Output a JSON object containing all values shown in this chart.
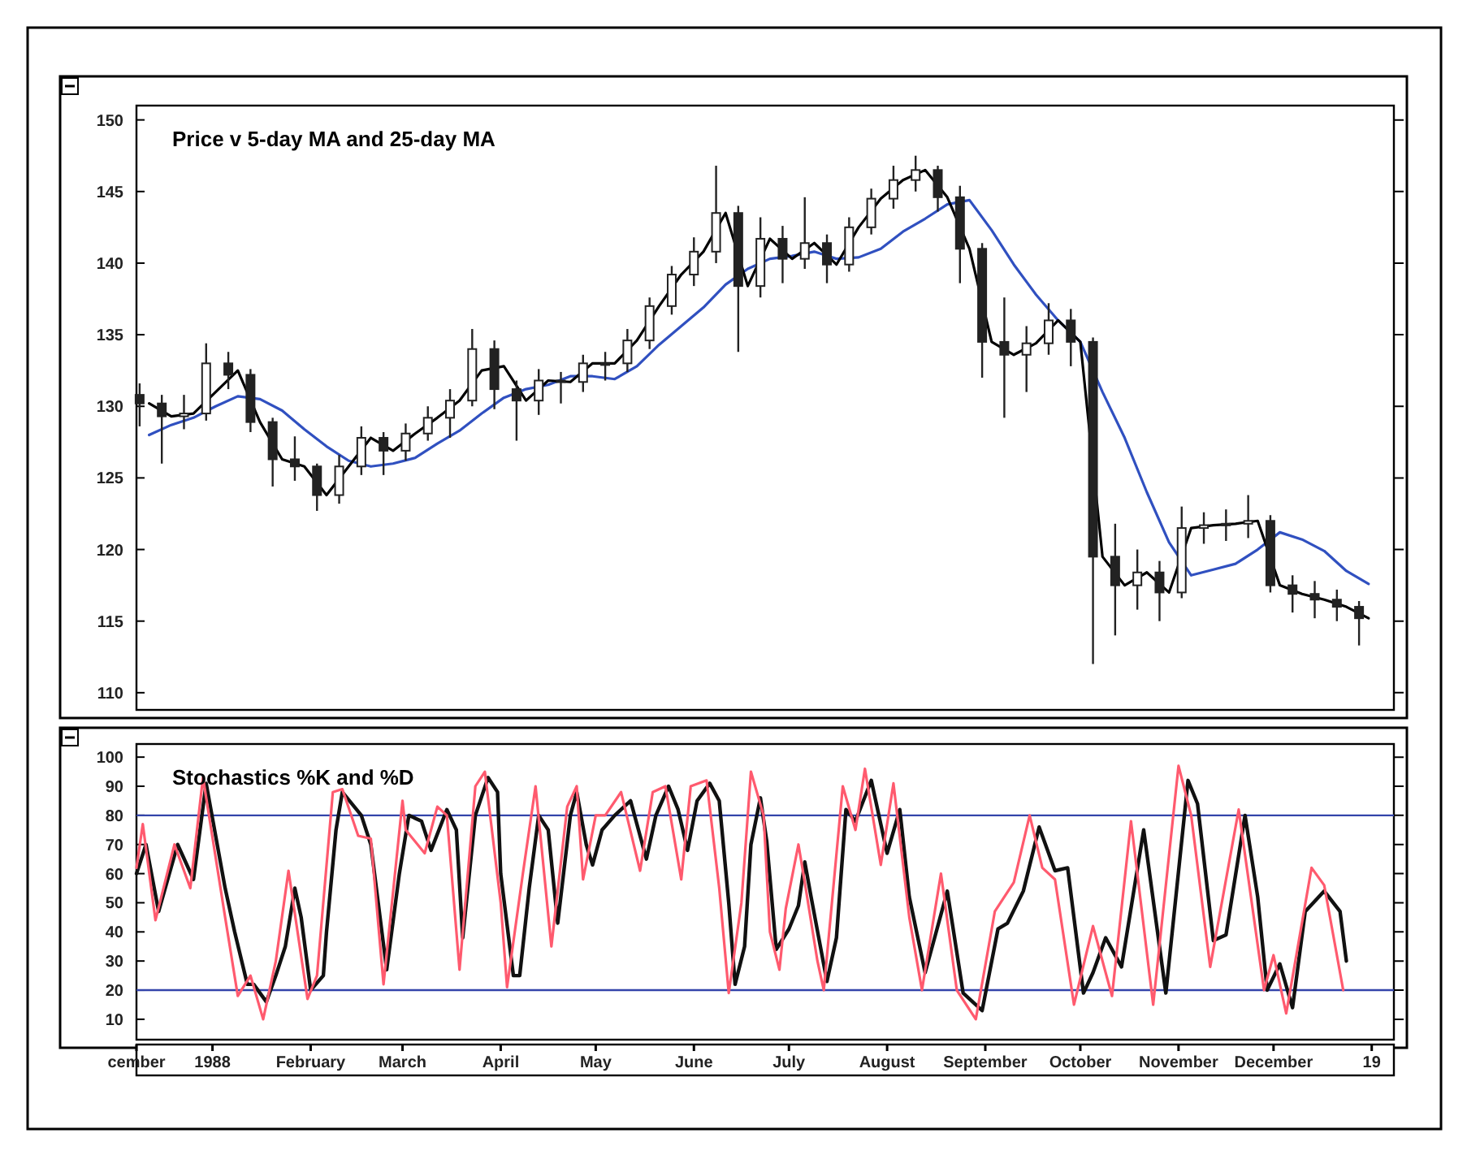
{
  "chart_data": [
    {
      "type": "candlestick",
      "title": "Price v 5-day MA and 25-day MA",
      "xlim": [
        "1987-12-08",
        "1989-01-08"
      ],
      "ylim": [
        108.8,
        151
      ],
      "yticks": [
        110,
        115,
        120,
        125,
        130,
        135,
        140,
        145,
        150
      ],
      "tick_labels": "y",
      "color": "#222222",
      "x": [
        "1987-12-09",
        "1987-12-16",
        "1987-12-23",
        "1987-12-30",
        "1988-01-06",
        "1988-01-13",
        "1988-01-20",
        "1988-01-27",
        "1988-02-03",
        "1988-02-10",
        "1988-02-17",
        "1988-02-24",
        "1988-03-02",
        "1988-03-09",
        "1988-03-16",
        "1988-03-23",
        "1988-03-30",
        "1988-04-06",
        "1988-04-13",
        "1988-04-20",
        "1988-04-27",
        "1988-05-04",
        "1988-05-11",
        "1988-05-18",
        "1988-05-25",
        "1988-06-01",
        "1988-06-08",
        "1988-06-15",
        "1988-06-22",
        "1988-06-29",
        "1988-07-06",
        "1988-07-13",
        "1988-07-20",
        "1988-07-27",
        "1988-08-03",
        "1988-08-10",
        "1988-08-17",
        "1988-08-24",
        "1988-08-31",
        "1988-09-07",
        "1988-09-14",
        "1988-09-21",
        "1988-09-28",
        "1988-10-05",
        "1988-10-12",
        "1988-10-19",
        "1988-10-26",
        "1988-11-02",
        "1988-11-09",
        "1988-11-16",
        "1988-11-23",
        "1988-11-30",
        "1988-12-07",
        "1988-12-14",
        "1988-12-21",
        "1988-12-28"
      ],
      "ohlc": [
        [
          130.8,
          131.6,
          128.6,
          130.2
        ],
        [
          130.2,
          130.8,
          126.0,
          129.3
        ],
        [
          129.3,
          130.8,
          128.4,
          129.5
        ],
        [
          129.5,
          134.4,
          129.0,
          133.0
        ],
        [
          133.0,
          133.8,
          131.2,
          132.2
        ],
        [
          132.2,
          132.6,
          128.2,
          128.9
        ],
        [
          128.9,
          129.2,
          124.4,
          126.3
        ],
        [
          126.3,
          127.9,
          124.8,
          125.8
        ],
        [
          125.8,
          126.0,
          122.7,
          123.8
        ],
        [
          123.8,
          126.6,
          123.2,
          125.8
        ],
        [
          125.8,
          128.6,
          125.2,
          127.8
        ],
        [
          127.8,
          128.2,
          125.2,
          126.9
        ],
        [
          126.9,
          128.8,
          126.2,
          128.1
        ],
        [
          128.1,
          130.0,
          127.6,
          129.2
        ],
        [
          129.2,
          131.2,
          127.8,
          130.4
        ],
        [
          130.4,
          135.4,
          130.0,
          134.0
        ],
        [
          134.0,
          134.6,
          129.8,
          131.2
        ],
        [
          131.2,
          131.8,
          127.6,
          130.4
        ],
        [
          130.4,
          132.6,
          129.4,
          131.8
        ],
        [
          131.8,
          132.4,
          130.2,
          131.7
        ],
        [
          131.7,
          133.6,
          131.0,
          133.0
        ],
        [
          133.0,
          133.8,
          131.8,
          133.0
        ],
        [
          133.0,
          135.4,
          132.4,
          134.6
        ],
        [
          134.6,
          137.6,
          134.0,
          137.0
        ],
        [
          137.0,
          139.8,
          136.4,
          139.2
        ],
        [
          139.2,
          141.8,
          138.4,
          140.8
        ],
        [
          140.8,
          146.8,
          140.0,
          143.5
        ],
        [
          143.5,
          144.0,
          133.8,
          138.4
        ],
        [
          138.4,
          143.2,
          137.6,
          141.7
        ],
        [
          141.7,
          142.6,
          138.6,
          140.3
        ],
        [
          140.3,
          144.6,
          139.6,
          141.4
        ],
        [
          141.4,
          142.0,
          138.6,
          139.9
        ],
        [
          139.9,
          143.2,
          139.4,
          142.5
        ],
        [
          142.5,
          145.2,
          142.0,
          144.5
        ],
        [
          144.5,
          146.8,
          143.8,
          145.8
        ],
        [
          145.8,
          147.5,
          145.0,
          146.5
        ],
        [
          146.5,
          146.8,
          143.6,
          144.6
        ],
        [
          144.6,
          145.4,
          138.6,
          141.0
        ],
        [
          141.0,
          141.4,
          132.0,
          134.5
        ],
        [
          134.5,
          137.6,
          129.2,
          133.6
        ],
        [
          133.6,
          135.6,
          131.0,
          134.4
        ],
        [
          134.4,
          137.2,
          133.6,
          136.0
        ],
        [
          136.0,
          136.8,
          132.8,
          134.5
        ],
        [
          134.5,
          134.8,
          112.0,
          119.5
        ],
        [
          119.5,
          121.8,
          114.0,
          117.5
        ],
        [
          117.5,
          120.0,
          115.8,
          118.4
        ],
        [
          118.4,
          119.2,
          115.0,
          117.0
        ],
        [
          117.0,
          123.0,
          116.6,
          121.5
        ],
        [
          121.5,
          122.6,
          120.4,
          121.7
        ],
        [
          121.7,
          122.8,
          120.6,
          121.8
        ],
        [
          121.8,
          123.8,
          120.8,
          122.0
        ],
        [
          122.0,
          122.4,
          117.0,
          117.5
        ],
        [
          117.5,
          118.2,
          115.6,
          116.9
        ],
        [
          116.9,
          117.8,
          115.2,
          116.5
        ],
        [
          116.5,
          117.2,
          115.0,
          116.0
        ],
        [
          116.0,
          116.4,
          113.3,
          115.2
        ]
      ],
      "series": [
        {
          "type": "line",
          "color": "#000000",
          "x": [
            "1987-12-12",
            "1987-12-19",
            "1987-12-26",
            "1988-01-02",
            "1988-01-09",
            "1988-01-16",
            "1988-01-23",
            "1988-01-30",
            "1988-02-06",
            "1988-02-13",
            "1988-02-20",
            "1988-02-27",
            "1988-03-05",
            "1988-03-12",
            "1988-03-19",
            "1988-03-26",
            "1988-04-02",
            "1988-04-09",
            "1988-04-16",
            "1988-04-23",
            "1988-04-30",
            "1988-05-07",
            "1988-05-14",
            "1988-05-21",
            "1988-05-28",
            "1988-06-04",
            "1988-06-11",
            "1988-06-18",
            "1988-06-25",
            "1988-07-02",
            "1988-07-09",
            "1988-07-16",
            "1988-07-23",
            "1988-07-30",
            "1988-08-06",
            "1988-08-13",
            "1988-08-20",
            "1988-08-27",
            "1988-09-03",
            "1988-09-10",
            "1988-09-17",
            "1988-09-24",
            "1988-10-01",
            "1988-10-08",
            "1988-10-15",
            "1988-10-22",
            "1988-10-29",
            "1988-11-05",
            "1988-11-12",
            "1988-11-19",
            "1988-11-26",
            "1988-12-03",
            "1988-12-10",
            "1988-12-17",
            "1988-12-24",
            "1988-12-31"
          ],
          "values": [
            130.2,
            129.3,
            129.5,
            131.0,
            132.5,
            128.9,
            126.3,
            125.8,
            123.8,
            125.8,
            127.8,
            126.9,
            128.1,
            129.2,
            130.4,
            132.5,
            132.8,
            130.4,
            131.8,
            131.7,
            133.0,
            133.0,
            134.6,
            137.0,
            139.2,
            140.8,
            143.5,
            138.4,
            141.7,
            140.3,
            141.4,
            139.9,
            142.5,
            144.5,
            145.8,
            146.5,
            144.6,
            141.0,
            134.5,
            133.6,
            134.4,
            136.0,
            134.5,
            119.5,
            117.5,
            118.4,
            117.0,
            121.5,
            121.7,
            121.8,
            122.0,
            117.5,
            116.9,
            116.5,
            116.0,
            115.2
          ]
        },
        {
          "type": "line",
          "color": "#3050c0",
          "x": [
            "1987-12-12",
            "1987-12-19",
            "1987-12-26",
            "1988-01-02",
            "1988-01-09",
            "1988-01-16",
            "1988-01-23",
            "1988-01-30",
            "1988-02-06",
            "1988-02-13",
            "1988-02-20",
            "1988-02-27",
            "1988-03-05",
            "1988-03-12",
            "1988-03-19",
            "1988-03-26",
            "1988-04-02",
            "1988-04-09",
            "1988-04-16",
            "1988-04-23",
            "1988-04-30",
            "1988-05-07",
            "1988-05-14",
            "1988-05-21",
            "1988-05-28",
            "1988-06-04",
            "1988-06-11",
            "1988-06-18",
            "1988-06-25",
            "1988-07-02",
            "1988-07-09",
            "1988-07-16",
            "1988-07-23",
            "1988-07-30",
            "1988-08-06",
            "1988-08-13",
            "1988-08-20",
            "1988-08-27",
            "1988-09-03",
            "1988-09-10",
            "1988-09-17",
            "1988-09-24",
            "1988-10-01",
            "1988-10-08",
            "1988-10-15",
            "1988-10-22",
            "1988-10-29",
            "1988-11-05",
            "1988-11-12",
            "1988-11-19",
            "1988-11-26",
            "1988-12-03",
            "1988-12-10",
            "1988-12-17",
            "1988-12-24",
            "1988-12-31"
          ],
          "values": [
            128.0,
            128.7,
            129.2,
            130.0,
            130.7,
            130.5,
            129.7,
            128.4,
            127.2,
            126.2,
            125.8,
            126.0,
            126.4,
            127.4,
            128.3,
            129.5,
            130.6,
            131.2,
            131.5,
            132.1,
            132.1,
            131.9,
            132.8,
            134.3,
            135.6,
            136.9,
            138.5,
            139.6,
            140.3,
            140.5,
            140.8,
            140.3,
            140.4,
            141.0,
            142.2,
            143.1,
            144.1,
            144.4,
            142.3,
            139.9,
            137.8,
            136.0,
            134.5,
            131.0,
            127.8,
            124.0,
            120.5,
            118.2,
            118.6,
            119.0,
            120.0,
            121.2,
            120.7,
            119.9,
            118.5,
            117.6
          ]
        }
      ]
    },
    {
      "type": "line",
      "title": "Stochastics %K and %D",
      "xlim": [
        "1987-12-08",
        "1989-01-08"
      ],
      "ylim": [
        3,
        104.5
      ],
      "yticks": [
        10,
        20,
        30,
        40,
        50,
        60,
        70,
        80,
        90,
        100
      ],
      "xticks": [
        {
          "value": "1987-12-08",
          "label": "cember"
        },
        {
          "value": "1988-01-01",
          "label": "1988"
        },
        {
          "value": "1988-02-01",
          "label": "February"
        },
        {
          "value": "1988-03-01",
          "label": "March"
        },
        {
          "value": "1988-04-01",
          "label": "April"
        },
        {
          "value": "1988-05-01",
          "label": "May"
        },
        {
          "value": "1988-06-01",
          "label": "June"
        },
        {
          "value": "1988-07-01",
          "label": "July"
        },
        {
          "value": "1988-08-01",
          "label": "August"
        },
        {
          "value": "1988-09-01",
          "label": "September"
        },
        {
          "value": "1988-10-01",
          "label": "October"
        },
        {
          "value": "1988-11-01",
          "label": "November"
        },
        {
          "value": "1988-12-01",
          "label": "December"
        },
        {
          "value": "1989-01-01",
          "label": "19"
        }
      ],
      "ref_lines": [
        {
          "axis": "y",
          "value": 80,
          "color": "#3344aa"
        },
        {
          "axis": "y",
          "value": 20,
          "color": "#3344aa"
        }
      ],
      "series": [
        {
          "color": "#ff5a6e",
          "x": [
            "1987-12-08",
            "1987-12-10",
            "1987-12-14",
            "1987-12-20",
            "1987-12-25",
            "1987-12-29",
            "1988-01-05",
            "1988-01-09",
            "1988-01-13",
            "1988-01-17",
            "1988-01-21",
            "1988-01-25",
            "1988-01-31",
            "1988-02-03",
            "1988-02-08",
            "1988-02-11",
            "1988-02-16",
            "1988-02-20",
            "1988-02-24",
            "1988-03-01",
            "1988-03-02",
            "1988-03-08",
            "1988-03-12",
            "1988-03-15",
            "1988-03-19",
            "1988-03-24",
            "1988-03-27",
            "1988-04-01",
            "1988-04-03",
            "1988-04-08",
            "1988-04-12",
            "1988-04-17",
            "1988-04-22",
            "1988-04-25",
            "1988-04-27",
            "1988-05-01",
            "1988-05-04",
            "1988-05-09",
            "1988-05-15",
            "1988-05-19",
            "1988-05-23",
            "1988-05-28",
            "1988-05-31",
            "1988-06-05",
            "1988-06-09",
            "1988-06-12",
            "1988-06-16",
            "1988-06-19",
            "1988-06-23",
            "1988-06-25",
            "1988-06-28",
            "1988-06-30",
            "1988-07-04",
            "1988-07-06",
            "1988-07-10",
            "1988-07-12",
            "1988-07-18",
            "1988-07-22",
            "1988-07-25",
            "1988-07-30",
            "1988-08-03",
            "1988-08-08",
            "1988-08-12",
            "1988-08-18",
            "1988-08-23",
            "1988-08-29",
            "1988-09-04",
            "1988-09-10",
            "1988-09-15",
            "1988-09-19",
            "1988-09-23",
            "1988-09-29",
            "1988-10-05",
            "1988-10-11",
            "1988-10-17",
            "1988-10-24",
            "1988-11-01",
            "1988-11-05",
            "1988-11-11",
            "1988-11-20",
            "1988-11-28",
            "1988-12-01",
            "1988-12-05",
            "1988-12-13",
            "1988-12-17",
            "1988-12-23"
          ],
          "values": [
            62,
            77,
            44,
            70,
            55,
            93,
            45,
            18,
            25,
            10,
            30,
            61,
            17,
            25,
            88,
            89,
            73,
            72,
            22,
            85,
            75,
            67,
            83,
            80,
            27,
            90,
            95,
            50,
            21,
            60,
            90,
            35,
            83,
            90,
            58,
            80,
            80,
            88,
            61,
            88,
            90,
            58,
            90,
            92,
            55,
            19,
            50,
            95,
            80,
            40,
            27,
            48,
            70,
            57,
            30,
            20,
            90,
            75,
            96,
            63,
            91,
            45,
            20,
            60,
            20,
            10,
            47,
            57,
            80,
            62,
            58,
            15,
            42,
            18,
            78,
            15,
            97,
            80,
            28,
            82,
            20,
            32,
            12,
            62,
            56,
            20
          ]
        },
        {
          "color": "#111111",
          "x": [
            "1987-12-08",
            "1987-12-11",
            "1987-12-15",
            "1987-12-21",
            "1987-12-26",
            "1987-12-30",
            "1988-01-05",
            "1988-01-08",
            "1988-01-12",
            "1988-01-14",
            "1988-01-18",
            "1988-01-21",
            "1988-01-24",
            "1988-01-27",
            "1988-01-29",
            "1988-02-01",
            "1988-02-05",
            "1988-02-06",
            "1988-02-09",
            "1988-02-11",
            "1988-02-17",
            "1988-02-20",
            "1988-02-25",
            "1988-02-29",
            "1988-03-03",
            "1988-03-07",
            "1988-03-10",
            "1988-03-15",
            "1988-03-18",
            "1988-03-20",
            "1988-03-24",
            "1988-03-28",
            "1988-03-31",
            "1988-04-01",
            "1988-04-05",
            "1988-04-07",
            "1988-04-10",
            "1988-04-13",
            "1988-04-16",
            "1988-04-19",
            "1988-04-23",
            "1988-04-25",
            "1988-04-28",
            "1988-04-30",
            "1988-05-03",
            "1988-05-07",
            "1988-05-12",
            "1988-05-17",
            "1988-05-20",
            "1988-05-24",
            "1988-05-27",
            "1988-05-30",
            "1988-06-02",
            "1988-06-06",
            "1988-06-09",
            "1988-06-12",
            "1988-06-14",
            "1988-06-17",
            "1988-06-19",
            "1988-06-22",
            "1988-06-24",
            "1988-06-27",
            "1988-07-01",
            "1988-07-04",
            "1988-07-06",
            "1988-07-08",
            "1988-07-13",
            "1988-07-16",
            "1988-07-19",
            "1988-07-22",
            "1988-07-27",
            "1988-08-01",
            "1988-08-05",
            "1988-08-08",
            "1988-08-13",
            "1988-08-20",
            "1988-08-25",
            "1988-08-31",
            "1988-09-05",
            "1988-09-08",
            "1988-09-13",
            "1988-09-18",
            "1988-09-23",
            "1988-09-27",
            "1988-10-02",
            "1988-10-05",
            "1988-10-09",
            "1988-10-14",
            "1988-10-21",
            "1988-10-28",
            "1988-11-04",
            "1988-11-07",
            "1988-11-12",
            "1988-11-16",
            "1988-11-22",
            "1988-11-26",
            "1988-11-29",
            "1988-12-03",
            "1988-12-07",
            "1988-12-11",
            "1988-12-17",
            "1988-12-22",
            "1988-12-24"
          ],
          "values": [
            60,
            70,
            47,
            70,
            58,
            91,
            55,
            40,
            22,
            22,
            16,
            25,
            35,
            55,
            45,
            20,
            25,
            40,
            75,
            88,
            80,
            70,
            27,
            60,
            80,
            78,
            68,
            82,
            75,
            38,
            80,
            93,
            88,
            60,
            25,
            25,
            55,
            80,
            75,
            43,
            80,
            88,
            70,
            63,
            75,
            80,
            85,
            65,
            80,
            90,
            82,
            68,
            85,
            91,
            85,
            50,
            22,
            35,
            70,
            86,
            71,
            34,
            41,
            49,
            64,
            52,
            23,
            38,
            82,
            78,
            92,
            67,
            82,
            52,
            26,
            54,
            19,
            13,
            41,
            43,
            54,
            76,
            61,
            62,
            19,
            26,
            38,
            28,
            75,
            19,
            92,
            84,
            37,
            39,
            80,
            52,
            20,
            29,
            14,
            47,
            54,
            47,
            30
          ]
        }
      ]
    }
  ]
}
